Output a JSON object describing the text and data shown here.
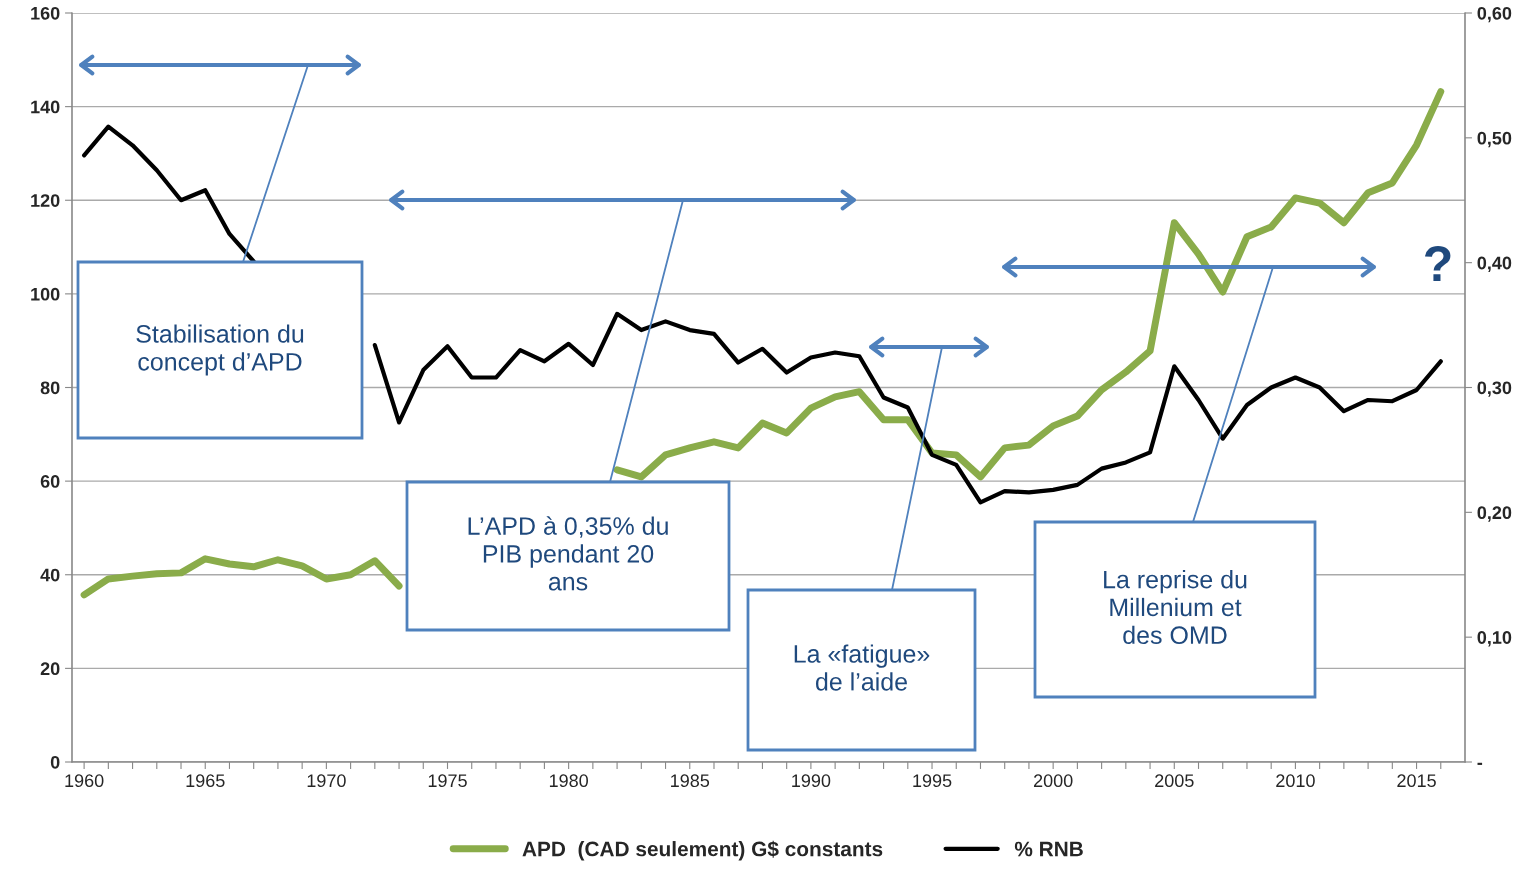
{
  "chart_data": {
    "type": "line",
    "x": [
      1960,
      1961,
      1962,
      1963,
      1964,
      1965,
      1966,
      1967,
      1968,
      1969,
      1970,
      1971,
      1972,
      1973,
      1974,
      1975,
      1976,
      1977,
      1978,
      1979,
      1980,
      1981,
      1982,
      1983,
      1984,
      1985,
      1986,
      1987,
      1988,
      1989,
      1990,
      1991,
      1992,
      1993,
      1994,
      1995,
      1996,
      1997,
      1998,
      1999,
      2000,
      2001,
      2002,
      2003,
      2004,
      2005,
      2006,
      2007,
      2008,
      2009,
      2010,
      2011,
      2012,
      2013,
      2014,
      2015,
      2016
    ],
    "series": [
      {
        "name": "APD  (CAD seulement) G$ constants",
        "color": "#8aac4a",
        "values": [
          35.7,
          39.1,
          39.7,
          40.2,
          40.4,
          43.4,
          42.3,
          41.7,
          43.2,
          41.9,
          39.1,
          40.0,
          43.0,
          37.6,
          null,
          null,
          null,
          null,
          null,
          null,
          null,
          null,
          62.4,
          60.9,
          65.6,
          67.1,
          68.4,
          67.1,
          72.4,
          70.3,
          75.6,
          78.0,
          79.1,
          73.1,
          73.1,
          66.0,
          65.6,
          60.9,
          67.1,
          67.7,
          71.8,
          73.9,
          79.5,
          83.3,
          87.8,
          115.2,
          108.5,
          100.4,
          112.2,
          114.3,
          120.5,
          119.4,
          115.2,
          121.6,
          123.7,
          131.8,
          143.2
        ]
      },
      {
        "name": "% RNB",
        "color": "#000000",
        "axis": "y2",
        "values": [
          0.486,
          0.509,
          0.494,
          0.474,
          0.45,
          0.458,
          0.423,
          0.401,
          null,
          null,
          null,
          null,
          0.334,
          0.272,
          0.314,
          0.333,
          0.308,
          0.308,
          0.33,
          0.321,
          0.335,
          0.318,
          0.359,
          0.346,
          0.353,
          0.346,
          0.343,
          0.32,
          0.331,
          0.312,
          0.324,
          0.328,
          0.325,
          0.292,
          0.284,
          0.246,
          0.238,
          0.208,
          0.217,
          0.216,
          0.218,
          0.222,
          0.235,
          0.24,
          0.248,
          0.317,
          0.29,
          0.259,
          0.286,
          0.3,
          0.308,
          0.3,
          0.281,
          0.29,
          0.289,
          0.298,
          0.321
        ]
      }
    ],
    "xlim": [
      1959.5,
      2017
    ],
    "xticks": [
      1960,
      {
        "value": 1961,
        "label": null
      },
      {
        "value": 1962,
        "label": null
      },
      {
        "value": 1963,
        "label": null
      },
      {
        "value": 1964,
        "label": null
      },
      1965,
      {
        "value": 1966,
        "label": null
      },
      {
        "value": 1967,
        "label": null
      },
      {
        "value": 1968,
        "label": null
      },
      {
        "value": 1969,
        "label": null
      },
      1970,
      {
        "value": 1971,
        "label": null
      },
      {
        "value": 1972,
        "label": null
      },
      {
        "value": 1973,
        "label": null
      },
      {
        "value": 1974,
        "label": null
      },
      1975,
      {
        "value": 1976,
        "label": null
      },
      {
        "value": 1977,
        "label": null
      },
      {
        "value": 1978,
        "label": null
      },
      {
        "value": 1979,
        "label": null
      },
      1980,
      {
        "value": 1981,
        "label": null
      },
      {
        "value": 1982,
        "label": null
      },
      {
        "value": 1983,
        "label": null
      },
      {
        "value": 1984,
        "label": null
      },
      1985,
      {
        "value": 1986,
        "label": null
      },
      {
        "value": 1987,
        "label": null
      },
      {
        "value": 1988,
        "label": null
      },
      {
        "value": 1989,
        "label": null
      },
      1990,
      {
        "value": 1991,
        "label": null
      },
      {
        "value": 1992,
        "label": null
      },
      {
        "value": 1993,
        "label": null
      },
      {
        "value": 1994,
        "label": null
      },
      1995,
      {
        "value": 1996,
        "label": null
      },
      {
        "value": 1997,
        "label": null
      },
      {
        "value": 1998,
        "label": null
      },
      {
        "value": 1999,
        "label": null
      },
      2000,
      {
        "value": 2001,
        "label": null
      },
      {
        "value": 2002,
        "label": null
      },
      {
        "value": 2003,
        "label": null
      },
      {
        "value": 2004,
        "label": null
      },
      2005,
      {
        "value": 2006,
        "label": null
      },
      {
        "value": 2007,
        "label": null
      },
      {
        "value": 2008,
        "label": null
      },
      {
        "value": 2009,
        "label": null
      },
      2010,
      {
        "value": 2011,
        "label": null
      },
      {
        "value": 2012,
        "label": null
      },
      {
        "value": 2013,
        "label": null
      },
      {
        "value": 2014,
        "label": null
      },
      2015,
      {
        "value": 2016,
        "label": null
      }
    ],
    "ylim": [
      0,
      160
    ],
    "yticks": [
      0,
      20,
      40,
      60,
      80,
      100,
      120,
      140,
      160
    ],
    "y2lim": [
      0,
      0.6
    ],
    "y2ticks": [
      {
        "value": 0,
        "label": "-"
      },
      {
        "value": 0.1,
        "label": "0,10"
      },
      {
        "value": 0.2,
        "label": "0,20"
      },
      {
        "value": 0.3,
        "label": "0,30"
      },
      {
        "value": 0.4,
        "label": "0,40"
      },
      {
        "value": 0.5,
        "label": "0,50"
      },
      {
        "value": 0.6,
        "label": "0,60"
      }
    ],
    "grid": "y",
    "legend": "bottom",
    "annotations": [
      "Stabilisation du\nconcept d’APD",
      "L’APD à 0,35% du\nPIB pendant 20\nans",
      "La «fatigue»\nde l’aide",
      "La reprise du\nMillenium et\ndes OMD",
      "?"
    ]
  }
}
